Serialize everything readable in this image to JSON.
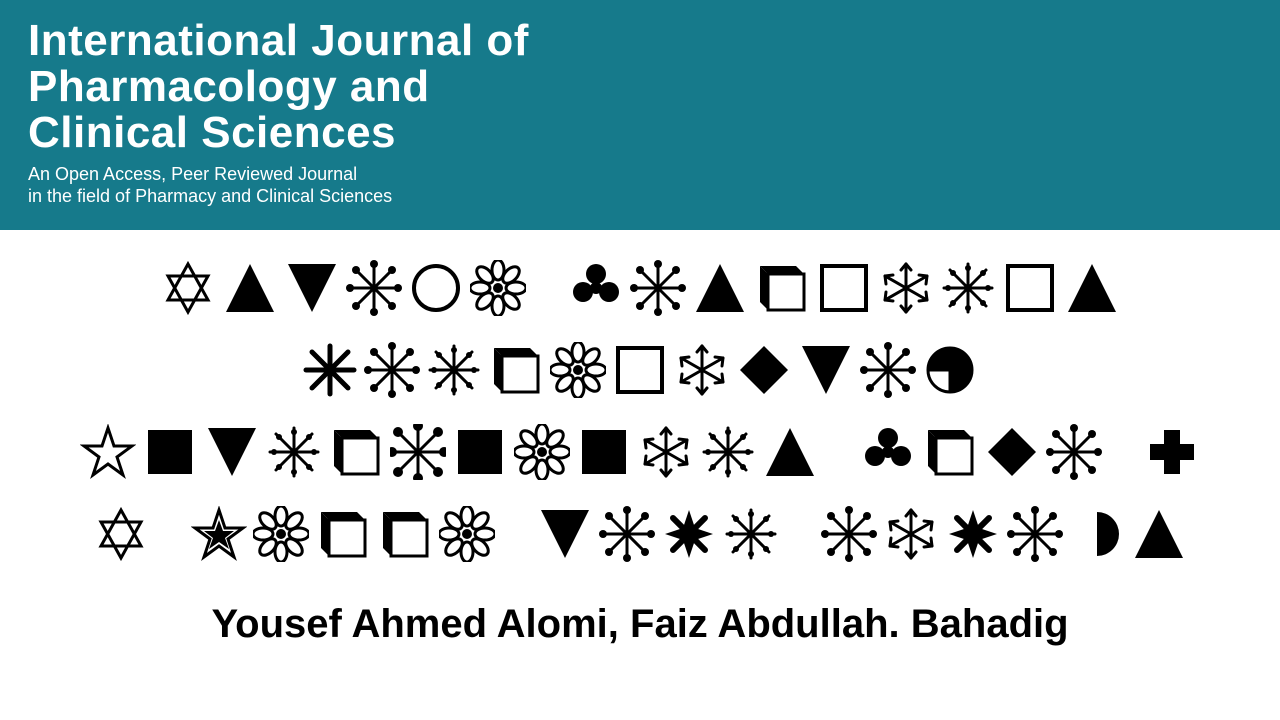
{
  "header": {
    "title_line1": "International Journal of",
    "title_line2": "Pharmacology and",
    "title_line3": "Clinical Sciences",
    "subtitle_line1": "An Open Access, Peer Reviewed Journal",
    "subtitle_line2": "in the field of Pharmacy and Clinical Sciences",
    "bg_color": "#167a8b",
    "text_color": "#ffffff"
  },
  "symbol_rows": [
    [
      "star-david",
      "triangle-up",
      "triangle-down",
      "sparkle",
      "circle-outline",
      "flower-big",
      "gap",
      "club",
      "sparkle",
      "triangle-up",
      "box-3d",
      "square-outline",
      "snowflake",
      "snow-ornate",
      "square-outline",
      "triangle-up"
    ],
    [
      "asterisk8",
      "sparkle",
      "snow-ornate",
      "box-3d",
      "flower-big",
      "square-outline",
      "snowflake",
      "diamond",
      "triangle-down",
      "sparkle",
      "split-circle"
    ],
    [
      "star5-outline",
      "square-solid",
      "triangle-down",
      "snow-ornate",
      "box-3d",
      "sparkle-wide",
      "square-solid",
      "flower-big",
      "square-solid",
      "snowflake",
      "snow-ornate",
      "triangle-up",
      "gap",
      "club",
      "box-3d",
      "diamond",
      "sparkle",
      "gap",
      "plus-solid"
    ],
    [
      "star-david",
      "gap",
      "star5-inset",
      "flower-big",
      "box-3d",
      "box-3d",
      "flower-big",
      "gap",
      "triangle-down",
      "sparkle",
      "diamond4",
      "snow-ornate",
      "gap",
      "sparkle",
      "snowflake",
      "diamond4",
      "sparkle",
      "half-circle",
      "triangle-up"
    ]
  ],
  "authors": "Yousef Ahmed Alomi, Faiz Abdullah. Bahadig",
  "colors": {
    "symbol": "#000000",
    "page_bg": "#ffffff"
  }
}
